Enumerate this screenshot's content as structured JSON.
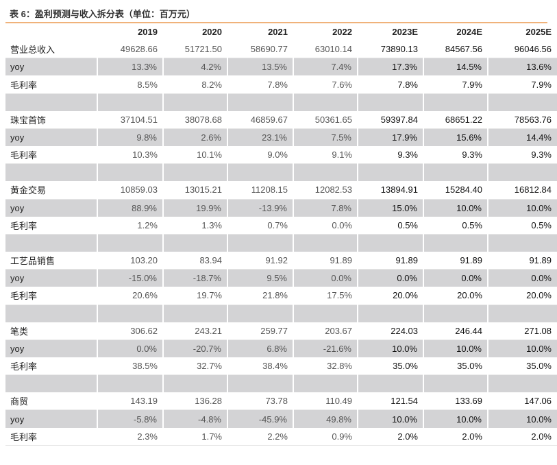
{
  "caption": "表 6：盈利预测与收入拆分表（单位：百万元）",
  "header": [
    "",
    "2019",
    "2020",
    "2021",
    "2022",
    "2023E",
    "2024E",
    "2025E"
  ],
  "rows": [
    {
      "label": "营业总收入",
      "values": [
        "49628.66",
        "51721.50",
        "58690.77",
        "63010.14",
        "73890.13",
        "84567.56",
        "96046.56"
      ],
      "style": "plain"
    },
    {
      "label": "yoy",
      "values": [
        "13.3%",
        "4.2%",
        "13.5%",
        "7.4%",
        "17.3%",
        "14.5%",
        "13.6%"
      ],
      "style": "shade"
    },
    {
      "label": "毛利率",
      "values": [
        "8.5%",
        "8.2%",
        "7.8%",
        "7.6%",
        "7.8%",
        "7.9%",
        "7.9%"
      ],
      "style": "plain"
    },
    {
      "label": "",
      "values": [
        "",
        "",
        "",
        "",
        "",
        "",
        ""
      ],
      "style": "spacer"
    },
    {
      "label": "珠宝首饰",
      "values": [
        "37104.51",
        "38078.68",
        "46859.67",
        "50361.65",
        "59397.84",
        "68651.22",
        "78563.76"
      ],
      "style": "plain"
    },
    {
      "label": "yoy",
      "values": [
        "9.8%",
        "2.6%",
        "23.1%",
        "7.5%",
        "17.9%",
        "15.6%",
        "14.4%"
      ],
      "style": "shade"
    },
    {
      "label": "毛利率",
      "values": [
        "10.3%",
        "10.1%",
        "9.0%",
        "9.1%",
        "9.3%",
        "9.3%",
        "9.3%"
      ],
      "style": "plain"
    },
    {
      "label": "",
      "values": [
        "",
        "",
        "",
        "",
        "",
        "",
        ""
      ],
      "style": "spacer"
    },
    {
      "label": "黄金交易",
      "values": [
        "10859.03",
        "13015.21",
        "11208.15",
        "12082.53",
        "13894.91",
        "15284.40",
        "16812.84"
      ],
      "style": "plain"
    },
    {
      "label": "yoy",
      "values": [
        "88.9%",
        "19.9%",
        "-13.9%",
        "7.8%",
        "15.0%",
        "10.0%",
        "10.0%"
      ],
      "style": "shade"
    },
    {
      "label": "毛利率",
      "values": [
        "1.2%",
        "1.3%",
        "0.7%",
        "0.0%",
        "0.5%",
        "0.5%",
        "0.5%"
      ],
      "style": "plain"
    },
    {
      "label": "",
      "values": [
        "",
        "",
        "",
        "",
        "",
        "",
        ""
      ],
      "style": "spacer"
    },
    {
      "label": "工艺品销售",
      "values": [
        "103.20",
        "83.94",
        "91.92",
        "91.89",
        "91.89",
        "91.89",
        "91.89"
      ],
      "style": "plain"
    },
    {
      "label": "yoy",
      "values": [
        "-15.0%",
        "-18.7%",
        "9.5%",
        "0.0%",
        "0.0%",
        "0.0%",
        "0.0%"
      ],
      "style": "shade"
    },
    {
      "label": "毛利率",
      "values": [
        "20.6%",
        "19.7%",
        "21.8%",
        "17.5%",
        "20.0%",
        "20.0%",
        "20.0%"
      ],
      "style": "plain"
    },
    {
      "label": "",
      "values": [
        "",
        "",
        "",
        "",
        "",
        "",
        ""
      ],
      "style": "spacer"
    },
    {
      "label": "笔类",
      "values": [
        "306.62",
        "243.21",
        "259.77",
        "203.67",
        "224.03",
        "246.44",
        "271.08"
      ],
      "style": "plain"
    },
    {
      "label": "yoy",
      "values": [
        "0.0%",
        "-20.7%",
        "6.8%",
        "-21.6%",
        "10.0%",
        "10.0%",
        "10.0%"
      ],
      "style": "shade"
    },
    {
      "label": "毛利率",
      "values": [
        "38.5%",
        "32.7%",
        "38.4%",
        "32.8%",
        "35.0%",
        "35.0%",
        "35.0%"
      ],
      "style": "plain"
    },
    {
      "label": "",
      "values": [
        "",
        "",
        "",
        "",
        "",
        "",
        ""
      ],
      "style": "spacer"
    },
    {
      "label": "商贸",
      "values": [
        "143.19",
        "136.28",
        "73.78",
        "110.49",
        "121.54",
        "133.69",
        "147.06"
      ],
      "style": "plain"
    },
    {
      "label": "yoy",
      "values": [
        "-5.8%",
        "-4.8%",
        "-45.9%",
        "49.8%",
        "10.0%",
        "10.0%",
        "10.0%"
      ],
      "style": "shade"
    },
    {
      "label": "毛利率",
      "values": [
        "2.3%",
        "1.7%",
        "2.2%",
        "0.9%",
        "2.0%",
        "2.0%",
        "2.0%"
      ],
      "style": "plain"
    }
  ]
}
